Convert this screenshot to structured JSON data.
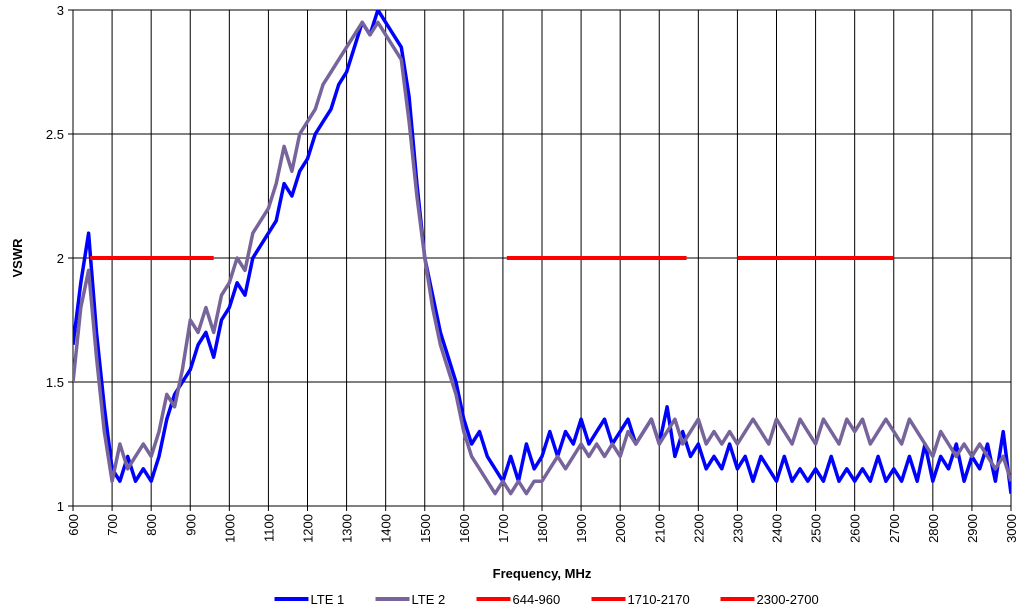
{
  "chart_data": {
    "type": "line",
    "x_label": "Frequency, MHz",
    "y_label": "VSWR",
    "x": [
      600,
      620,
      640,
      660,
      680,
      700,
      720,
      740,
      760,
      780,
      800,
      820,
      840,
      860,
      880,
      900,
      920,
      940,
      960,
      980,
      1000,
      1020,
      1040,
      1060,
      1080,
      1100,
      1120,
      1140,
      1160,
      1180,
      1200,
      1220,
      1240,
      1260,
      1280,
      1300,
      1320,
      1340,
      1360,
      1380,
      1400,
      1420,
      1440,
      1460,
      1480,
      1500,
      1520,
      1540,
      1560,
      1580,
      1600,
      1620,
      1640,
      1660,
      1680,
      1700,
      1720,
      1740,
      1760,
      1780,
      1800,
      1820,
      1840,
      1860,
      1880,
      1900,
      1920,
      1940,
      1960,
      1980,
      2000,
      2020,
      2040,
      2060,
      2080,
      2100,
      2120,
      2140,
      2160,
      2180,
      2200,
      2220,
      2240,
      2260,
      2280,
      2300,
      2320,
      2340,
      2360,
      2380,
      2400,
      2420,
      2440,
      2460,
      2480,
      2500,
      2520,
      2540,
      2560,
      2580,
      2600,
      2620,
      2640,
      2660,
      2680,
      2700,
      2720,
      2740,
      2760,
      2780,
      2800,
      2820,
      2840,
      2860,
      2880,
      2900,
      2920,
      2940,
      2960,
      2980,
      3000
    ],
    "series": [
      {
        "name": "LTE 1",
        "color": "#0000ff",
        "values": [
          1.65,
          1.9,
          2.1,
          1.7,
          1.4,
          1.15,
          1.1,
          1.2,
          1.1,
          1.15,
          1.1,
          1.2,
          1.35,
          1.45,
          1.5,
          1.55,
          1.65,
          1.7,
          1.6,
          1.75,
          1.8,
          1.9,
          1.85,
          2.0,
          2.05,
          2.1,
          2.15,
          2.3,
          2.25,
          2.35,
          2.4,
          2.5,
          2.55,
          2.6,
          2.7,
          2.75,
          2.85,
          2.95,
          2.9,
          3.0,
          2.95,
          2.9,
          2.85,
          2.65,
          2.3,
          2.0,
          1.85,
          1.7,
          1.6,
          1.5,
          1.35,
          1.25,
          1.3,
          1.2,
          1.15,
          1.1,
          1.2,
          1.1,
          1.25,
          1.15,
          1.2,
          1.3,
          1.2,
          1.3,
          1.25,
          1.35,
          1.25,
          1.3,
          1.35,
          1.25,
          1.3,
          1.35,
          1.25,
          1.3,
          1.35,
          1.25,
          1.4,
          1.2,
          1.3,
          1.2,
          1.25,
          1.15,
          1.2,
          1.15,
          1.25,
          1.15,
          1.2,
          1.1,
          1.2,
          1.15,
          1.1,
          1.2,
          1.1,
          1.15,
          1.1,
          1.15,
          1.1,
          1.2,
          1.1,
          1.15,
          1.1,
          1.15,
          1.1,
          1.2,
          1.1,
          1.15,
          1.1,
          1.2,
          1.1,
          1.25,
          1.1,
          1.2,
          1.15,
          1.25,
          1.1,
          1.2,
          1.15,
          1.25,
          1.1,
          1.3,
          1.05
        ]
      },
      {
        "name": "LTE 2",
        "color": "#76649a",
        "values": [
          1.5,
          1.8,
          1.95,
          1.6,
          1.3,
          1.1,
          1.25,
          1.15,
          1.2,
          1.25,
          1.2,
          1.3,
          1.45,
          1.4,
          1.55,
          1.75,
          1.7,
          1.8,
          1.7,
          1.85,
          1.9,
          2.0,
          1.95,
          2.1,
          2.15,
          2.2,
          2.3,
          2.45,
          2.35,
          2.5,
          2.55,
          2.6,
          2.7,
          2.75,
          2.8,
          2.85,
          2.9,
          2.95,
          2.9,
          2.95,
          2.9,
          2.85,
          2.8,
          2.55,
          2.25,
          2.0,
          1.8,
          1.65,
          1.55,
          1.45,
          1.3,
          1.2,
          1.15,
          1.1,
          1.05,
          1.1,
          1.05,
          1.1,
          1.05,
          1.1,
          1.1,
          1.15,
          1.2,
          1.15,
          1.2,
          1.25,
          1.2,
          1.25,
          1.2,
          1.25,
          1.2,
          1.3,
          1.25,
          1.3,
          1.35,
          1.25,
          1.3,
          1.35,
          1.25,
          1.3,
          1.35,
          1.25,
          1.3,
          1.25,
          1.3,
          1.25,
          1.3,
          1.35,
          1.3,
          1.25,
          1.35,
          1.3,
          1.25,
          1.35,
          1.3,
          1.25,
          1.35,
          1.3,
          1.25,
          1.35,
          1.3,
          1.35,
          1.25,
          1.3,
          1.35,
          1.3,
          1.25,
          1.35,
          1.3,
          1.25,
          1.2,
          1.3,
          1.25,
          1.2,
          1.25,
          1.2,
          1.25,
          1.2,
          1.15,
          1.2,
          1.1
        ]
      },
      {
        "name": "644-960",
        "color": "#ff0000",
        "x": [
          644,
          960
        ],
        "values": [
          2,
          2
        ]
      },
      {
        "name": "1710-2170",
        "color": "#ff0000",
        "x": [
          1710,
          2170
        ],
        "values": [
          2,
          2
        ]
      },
      {
        "name": "2300-2700",
        "color": "#ff0000",
        "x": [
          2300,
          2700
        ],
        "values": [
          2,
          2
        ]
      }
    ],
    "xlim": [
      600,
      3000
    ],
    "xticks": [
      600,
      700,
      800,
      900,
      1000,
      1100,
      1200,
      1300,
      1400,
      1500,
      1600,
      1700,
      1800,
      1900,
      2000,
      2100,
      2200,
      2300,
      2400,
      2500,
      2600,
      2700,
      2800,
      2900,
      3000
    ],
    "ylim": [
      1,
      3
    ],
    "yticks": [
      1,
      1.5,
      2,
      2.5,
      3
    ],
    "grid": true,
    "legend": "bottom"
  }
}
